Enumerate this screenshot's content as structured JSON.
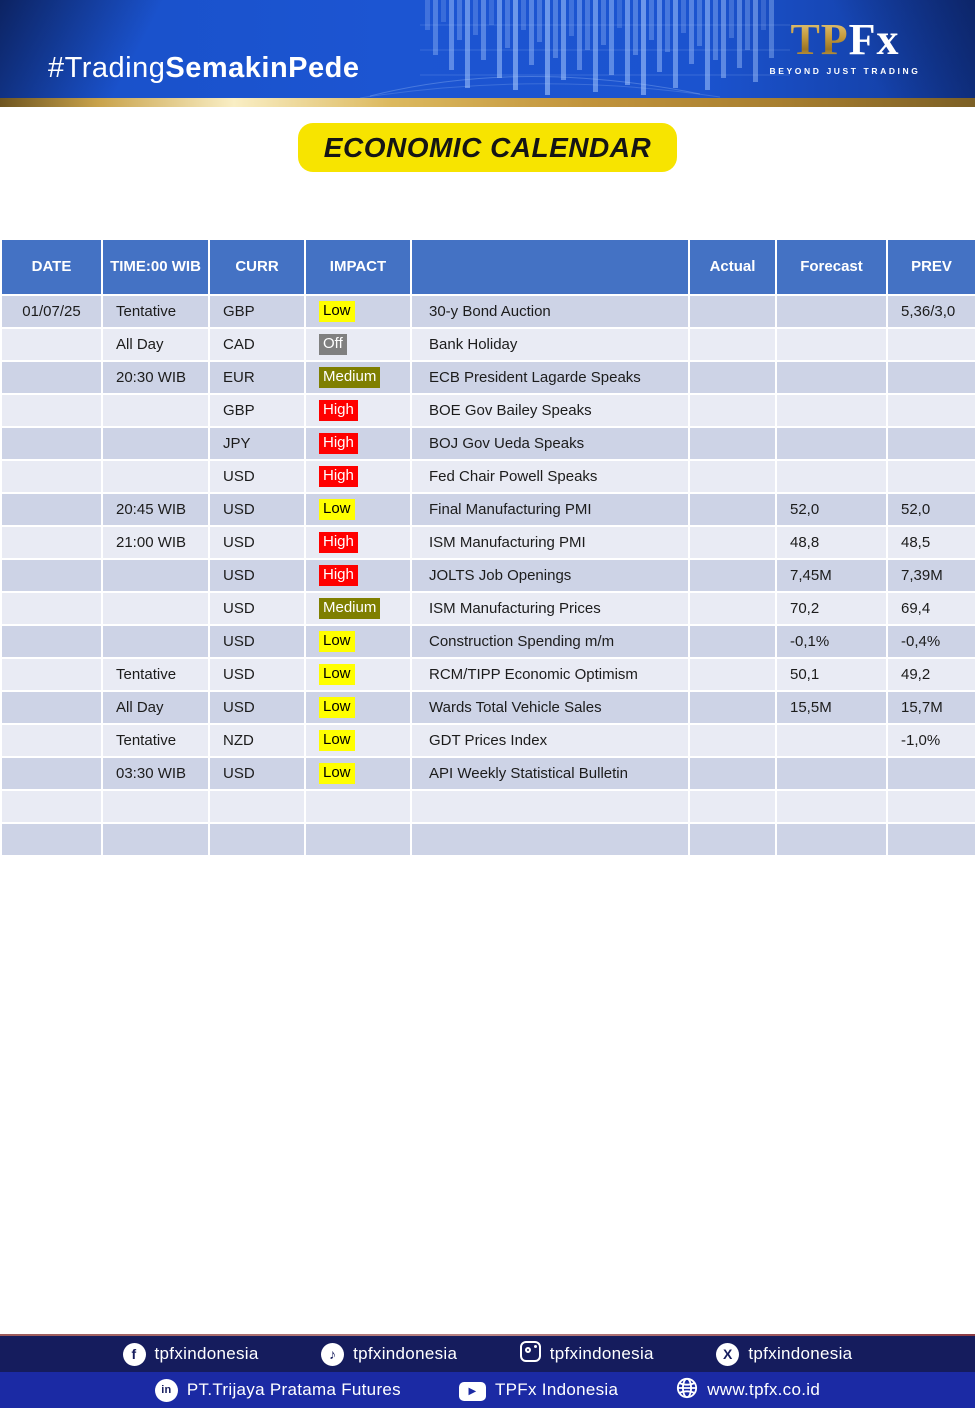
{
  "header": {
    "hashtag_light": "#Trading",
    "hashtag_bold": "SemakinPede",
    "logo_gold": "TP",
    "logo_white": "Fx",
    "logo_tagline": "BEYOND JUST TRADING"
  },
  "title": "ECONOMIC CALENDAR",
  "table": {
    "headers": [
      "DATE",
      "TIME:00 WIB",
      "CURR",
      "IMPACT",
      "",
      "Actual",
      "Forecast",
      "PREV"
    ],
    "impact_styles": {
      "Low": {
        "bg": "#ffff00",
        "fg": "#000000"
      },
      "Off": {
        "bg": "#808080",
        "fg": "#ffffff"
      },
      "Medium": {
        "bg": "#7f7f00",
        "fg": "#ffffff"
      },
      "High": {
        "bg": "#ff0000",
        "fg": "#ffffff"
      }
    },
    "rows": [
      {
        "date": "01/07/25",
        "time": "Tentative",
        "curr": "GBP",
        "impact": "Low",
        "event": "30-y Bond Auction",
        "actual": "",
        "forecast": "",
        "prev": "5,36/3,0"
      },
      {
        "date": "",
        "time": "All Day",
        "curr": "CAD",
        "impact": "Off",
        "event": "Bank Holiday",
        "actual": "",
        "forecast": "",
        "prev": ""
      },
      {
        "date": "",
        "time": "20:30 WIB",
        "curr": "EUR",
        "impact": "Medium",
        "event": "ECB President Lagarde Speaks",
        "actual": "",
        "forecast": "",
        "prev": ""
      },
      {
        "date": "",
        "time": "",
        "curr": "GBP",
        "impact": "High",
        "event": "BOE Gov Bailey Speaks",
        "actual": "",
        "forecast": "",
        "prev": ""
      },
      {
        "date": "",
        "time": "",
        "curr": "JPY",
        "impact": "High",
        "event": "BOJ Gov Ueda Speaks",
        "actual": "",
        "forecast": "",
        "prev": ""
      },
      {
        "date": "",
        "time": "",
        "curr": "USD",
        "impact": "High",
        "event": "Fed Chair Powell Speaks",
        "actual": "",
        "forecast": "",
        "prev": ""
      },
      {
        "date": "",
        "time": "20:45 WIB",
        "curr": "USD",
        "impact": "Low",
        "event": "Final Manufacturing PMI",
        "actual": "",
        "forecast": "52,0",
        "prev": "52,0"
      },
      {
        "date": "",
        "time": "21:00 WIB",
        "curr": "USD",
        "impact": "High",
        "event": "ISM Manufacturing PMI",
        "actual": "",
        "forecast": "48,8",
        "prev": "48,5"
      },
      {
        "date": "",
        "time": "",
        "curr": "USD",
        "impact": "High",
        "event": "JOLTS Job Openings",
        "actual": "",
        "forecast": "7,45M",
        "prev": "7,39M"
      },
      {
        "date": "",
        "time": "",
        "curr": "USD",
        "impact": "Medium",
        "event": "ISM Manufacturing Prices",
        "actual": "",
        "forecast": "70,2",
        "prev": "69,4"
      },
      {
        "date": "",
        "time": "",
        "curr": "USD",
        "impact": "Low",
        "event": "Construction Spending m/m",
        "actual": "",
        "forecast": "-0,1%",
        "prev": "-0,4%"
      },
      {
        "date": "",
        "time": "Tentative",
        "curr": "USD",
        "impact": "Low",
        "event": "RCM/TIPP Economic Optimism",
        "actual": "",
        "forecast": "50,1",
        "prev": "49,2"
      },
      {
        "date": "",
        "time": "All Day",
        "curr": "USD",
        "impact": "Low",
        "event": "Wards Total Vehicle Sales",
        "actual": "",
        "forecast": "15,5M",
        "prev": "15,7M"
      },
      {
        "date": "",
        "time": "Tentative",
        "curr": "NZD",
        "impact": "Low",
        "event": "GDT Prices Index",
        "actual": "",
        "forecast": "",
        "prev": "-1,0%"
      },
      {
        "date": "",
        "time": "03:30 WIB",
        "curr": "USD",
        "impact": "Low",
        "event": "API Weekly Statistical Bulletin",
        "actual": "",
        "forecast": "",
        "prev": ""
      },
      {
        "date": "",
        "time": "",
        "curr": "",
        "impact": "",
        "event": "",
        "actual": "",
        "forecast": "",
        "prev": ""
      },
      {
        "date": "",
        "time": "",
        "curr": "",
        "impact": "",
        "event": "",
        "actual": "",
        "forecast": "",
        "prev": ""
      }
    ]
  },
  "footer": {
    "social_row": [
      {
        "icon": "facebook-icon",
        "name": "facebook",
        "label": "tpfxindonesia"
      },
      {
        "icon": "tiktok-icon",
        "name": "tiktok",
        "label": "tpfxindonesia"
      },
      {
        "icon": "instagram-icon",
        "name": "instagram",
        "label": "tpfxindonesia"
      },
      {
        "icon": "x-icon",
        "name": "x",
        "label": "tpfxindonesia"
      }
    ],
    "info_row": [
      {
        "icon": "linkedin-icon",
        "name": "linkedin",
        "label": "PT.Trijaya Pratama Futures"
      },
      {
        "icon": "youtube-icon",
        "name": "youtube",
        "label": "TPFx Indonesia"
      },
      {
        "icon": "globe-icon",
        "name": "website",
        "label": "www.tpfx.co.id"
      }
    ]
  },
  "colors": {
    "banner_blue": "#1c55d2",
    "gold_accent": "#c8a24b",
    "title_bg": "#f7e400",
    "table_header_bg": "#4472c4",
    "row_dark": "#cdd3e6",
    "row_light": "#e9ebf4",
    "footer_navy": "#151c5d",
    "footer_blue": "#1b2aa4"
  }
}
